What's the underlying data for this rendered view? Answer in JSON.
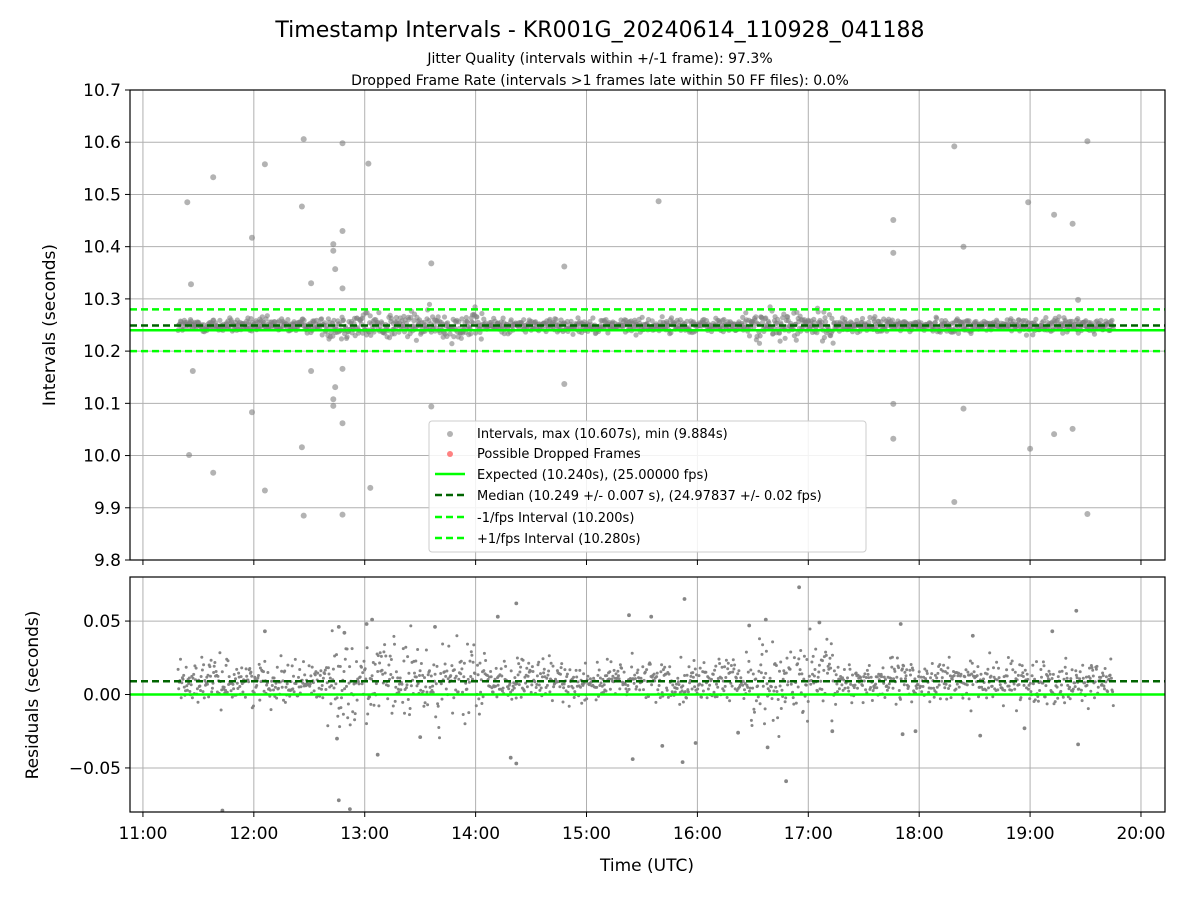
{
  "title": "Timestamp Intervals - KR001G_20240614_110928_041188",
  "subtitle_lines": [
    "Jitter Quality (intervals within +/-1 frame): 97.3%",
    "Dropped Frame Rate (intervals >1 frames late within 50 FF files): 0.0%"
  ],
  "colors": {
    "points": "#808080",
    "dropped": "#ff4d4d",
    "expected": "#00ff00",
    "median": "#006400",
    "interval": "#00ff00",
    "grid": "#b0b0b0"
  },
  "chart_data": [
    {
      "id": "intervals",
      "type": "scatter",
      "ylabel": "Intervals (seconds)",
      "xlabel": "",
      "ylim": [
        9.8,
        10.7
      ],
      "yticks": [
        9.8,
        9.9,
        10.0,
        10.1,
        10.2,
        10.3,
        10.4,
        10.5,
        10.6,
        10.7
      ],
      "ytick_labels": [
        "9.8",
        "9.9",
        "10.0",
        "10.1",
        "10.2",
        "10.3",
        "10.4",
        "10.5",
        "10.6",
        "10.7"
      ],
      "xlim": [
        "10:53",
        "20:13"
      ],
      "xticks": [
        "11:00",
        "12:00",
        "13:00",
        "14:00",
        "15:00",
        "16:00",
        "17:00",
        "18:00",
        "19:00",
        "20:00"
      ],
      "grid": true,
      "legend_position": "lower center",
      "hlines": {
        "expected": 10.24,
        "median": 10.249,
        "minus_interval": 10.2,
        "plus_interval": 10.28
      },
      "series": [
        {
          "name": "Intervals, max (10.607s), min (9.884s)",
          "dense_band": {
            "x_start": "11:19",
            "x_end": "19:45",
            "center": 10.249,
            "spread": 0.007
          },
          "points": [
            [
              "11:24",
              10.485
            ],
            [
              "11:26",
              10.328
            ],
            [
              "11:25",
              10.001
            ],
            [
              "11:27",
              10.162
            ],
            [
              "11:38",
              10.533
            ],
            [
              "11:38",
              9.967
            ],
            [
              "11:59",
              10.417
            ],
            [
              "11:59",
              10.083
            ],
            [
              "12:06",
              10.558
            ],
            [
              "12:06",
              9.933
            ],
            [
              "12:27",
              10.606
            ],
            [
              "12:26",
              10.477
            ],
            [
              "12:26",
              10.016
            ],
            [
              "12:27",
              9.885
            ],
            [
              "12:31",
              10.33
            ],
            [
              "12:31",
              10.162
            ],
            [
              "12:43",
              10.405
            ],
            [
              "12:43",
              10.392
            ],
            [
              "12:44",
              10.357
            ],
            [
              "12:43",
              10.095
            ],
            [
              "12:43",
              10.108
            ],
            [
              "12:44",
              10.131
            ],
            [
              "12:48",
              10.598
            ],
            [
              "12:48",
              10.43
            ],
            [
              "12:48",
              10.32
            ],
            [
              "12:48",
              10.166
            ],
            [
              "12:48",
              10.062
            ],
            [
              "12:48",
              9.887
            ],
            [
              "13:02",
              10.559
            ],
            [
              "13:03",
              9.938
            ],
            [
              "13:36",
              10.368
            ],
            [
              "13:36",
              10.094
            ],
            [
              "14:48",
              10.362
            ],
            [
              "14:48",
              10.137
            ],
            [
              "15:39",
              10.487
            ],
            [
              "17:46",
              10.451
            ],
            [
              "17:46",
              10.388
            ],
            [
              "17:46",
              10.099
            ],
            [
              "17:46",
              10.032
            ],
            [
              "18:19",
              10.592
            ],
            [
              "18:19",
              9.911
            ],
            [
              "18:24",
              10.4
            ],
            [
              "18:24",
              10.09
            ],
            [
              "18:59",
              10.485
            ],
            [
              "19:00",
              10.013
            ],
            [
              "19:13",
              10.461
            ],
            [
              "19:13",
              10.041
            ],
            [
              "19:23",
              10.444
            ],
            [
              "19:23",
              10.051
            ],
            [
              "19:26",
              10.298
            ],
            [
              "19:31",
              10.602
            ],
            [
              "19:31",
              9.888
            ]
          ]
        },
        {
          "name": "Possible Dropped Frames",
          "points": []
        }
      ],
      "legend": [
        "Intervals, max (10.607s), min (9.884s)",
        "Possible Dropped Frames",
        "Expected (10.240s), (25.00000 fps)",
        "Median (10.249 +/- 0.007 s), (24.97837 +/- 0.02 fps)",
        "-1/fps Interval (10.200s)",
        "+1/fps Interval (10.280s)"
      ]
    },
    {
      "id": "residuals",
      "type": "scatter",
      "ylabel": "Residuals (seconds)",
      "xlabel": "Time (UTC)",
      "ylim": [
        -0.08,
        0.08
      ],
      "yticks": [
        -0.05,
        0.0,
        0.05
      ],
      "ytick_labels": [
        "−0.05",
        "0.00",
        "0.05"
      ],
      "xlim": [
        "10:53",
        "20:13"
      ],
      "xticks": [
        "11:00",
        "12:00",
        "13:00",
        "14:00",
        "15:00",
        "16:00",
        "17:00",
        "18:00",
        "19:00",
        "20:00"
      ],
      "xtick_labels": [
        "11:00",
        "12:00",
        "13:00",
        "14:00",
        "15:00",
        "16:00",
        "17:00",
        "18:00",
        "19:00",
        "20:00"
      ],
      "grid": true,
      "hlines": {
        "zero": 0.0,
        "median_offset": 0.009
      },
      "series": [
        {
          "name": "Residuals",
          "dense_band": {
            "x_start": "11:19",
            "x_end": "19:45",
            "center": 0.009,
            "spread": 0.007
          },
          "points": [
            [
              "12:06",
              0.043
            ],
            [
              "12:46",
              0.046
            ],
            [
              "12:49",
              0.042
            ],
            [
              "13:01",
              0.048
            ],
            [
              "13:04",
              0.051
            ],
            [
              "13:38",
              0.046
            ],
            [
              "14:12",
              0.053
            ],
            [
              "14:22",
              0.062
            ],
            [
              "15:23",
              0.054
            ],
            [
              "15:35",
              0.053
            ],
            [
              "15:53",
              0.065
            ],
            [
              "16:28",
              0.047
            ],
            [
              "16:37",
              0.051
            ],
            [
              "16:55",
              0.073
            ],
            [
              "17:06",
              0.049
            ],
            [
              "17:50",
              0.048
            ],
            [
              "18:29",
              0.04
            ],
            [
              "19:12",
              0.043
            ],
            [
              "19:25",
              0.057
            ],
            [
              "11:43",
              -0.079
            ],
            [
              "12:52",
              -0.078
            ],
            [
              "12:46",
              -0.072
            ],
            [
              "12:45",
              -0.03
            ],
            [
              "13:07",
              -0.041
            ],
            [
              "13:30",
              -0.029
            ],
            [
              "14:19",
              -0.043
            ],
            [
              "14:22",
              -0.047
            ],
            [
              "15:25",
              -0.044
            ],
            [
              "15:41",
              -0.035
            ],
            [
              "15:52",
              -0.046
            ],
            [
              "15:59",
              -0.033
            ],
            [
              "16:22",
              -0.026
            ],
            [
              "16:38",
              -0.036
            ],
            [
              "16:48",
              -0.059
            ],
            [
              "17:13",
              -0.025
            ],
            [
              "17:51",
              -0.027
            ],
            [
              "17:58",
              -0.025
            ],
            [
              "18:33",
              -0.028
            ],
            [
              "18:57",
              -0.023
            ],
            [
              "19:26",
              -0.034
            ]
          ]
        }
      ]
    }
  ]
}
